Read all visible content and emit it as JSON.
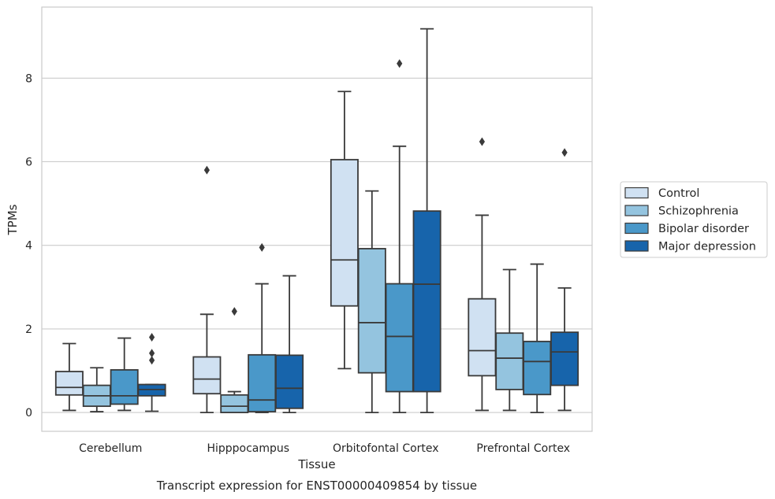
{
  "chart_data": {
    "type": "box",
    "xlabel": "Tissue",
    "ylabel": "TPMs",
    "caption": "Transcript expression for ENST00000409854 by tissue",
    "ylim": [
      -0.45,
      9.7
    ],
    "yticks": [
      0,
      2,
      4,
      6,
      8
    ],
    "grid": "horizontal",
    "legend_position": "right",
    "categories": [
      "Cerebellum",
      "Hipppocampus",
      "Orbitofontal Cortex",
      "Prefrontal Cortex"
    ],
    "series": [
      {
        "name": "Control",
        "color": "#d0e1f2",
        "boxes": [
          {
            "whislo": 0.05,
            "q1": 0.42,
            "med": 0.6,
            "q3": 0.98,
            "whishi": 1.65,
            "fliers": []
          },
          {
            "whislo": 0.0,
            "q1": 0.45,
            "med": 0.8,
            "q3": 1.33,
            "whishi": 2.35,
            "fliers": [
              5.8
            ]
          },
          {
            "whislo": 1.05,
            "q1": 2.55,
            "med": 3.65,
            "q3": 6.05,
            "whishi": 7.68,
            "fliers": []
          },
          {
            "whislo": 0.05,
            "q1": 0.88,
            "med": 1.48,
            "q3": 2.72,
            "whishi": 4.72,
            "fliers": [
              6.48
            ]
          }
        ]
      },
      {
        "name": "Schizophrenia",
        "color": "#94c4df",
        "boxes": [
          {
            "whislo": 0.02,
            "q1": 0.15,
            "med": 0.4,
            "q3": 0.65,
            "whishi": 1.07,
            "fliers": []
          },
          {
            "whislo": 0.0,
            "q1": 0.0,
            "med": 0.15,
            "q3": 0.42,
            "whishi": 0.5,
            "fliers": [
              2.42
            ]
          },
          {
            "whislo": 0.0,
            "q1": 0.95,
            "med": 2.15,
            "q3": 3.92,
            "whishi": 5.3,
            "fliers": []
          },
          {
            "whislo": 0.05,
            "q1": 0.55,
            "med": 1.3,
            "q3": 1.9,
            "whishi": 3.42,
            "fliers": []
          }
        ]
      },
      {
        "name": "Bipolar disorder",
        "color": "#4a98c9",
        "boxes": [
          {
            "whislo": 0.05,
            "q1": 0.2,
            "med": 0.4,
            "q3": 1.02,
            "whishi": 1.78,
            "fliers": []
          },
          {
            "whislo": 0.0,
            "q1": 0.02,
            "med": 0.3,
            "q3": 1.38,
            "whishi": 3.08,
            "fliers": [
              3.95
            ]
          },
          {
            "whislo": 0.0,
            "q1": 0.5,
            "med": 1.82,
            "q3": 3.08,
            "whishi": 6.37,
            "fliers": [
              8.35
            ]
          },
          {
            "whislo": 0.0,
            "q1": 0.43,
            "med": 1.22,
            "q3": 1.7,
            "whishi": 3.55,
            "fliers": []
          }
        ]
      },
      {
        "name": "Major depression",
        "color": "#1764ab",
        "boxes": [
          {
            "whislo": 0.03,
            "q1": 0.4,
            "med": 0.55,
            "q3": 0.67,
            "whishi": 0.67,
            "fliers": [
              1.25,
              1.42,
              1.8
            ]
          },
          {
            "whislo": 0.0,
            "q1": 0.1,
            "med": 0.58,
            "q3": 1.37,
            "whishi": 3.27,
            "fliers": []
          },
          {
            "whislo": 0.0,
            "q1": 0.5,
            "med": 3.07,
            "q3": 4.82,
            "whishi": 9.18,
            "fliers": []
          },
          {
            "whislo": 0.05,
            "q1": 0.65,
            "med": 1.45,
            "q3": 1.92,
            "whishi": 2.98,
            "fliers": [
              6.22
            ]
          }
        ]
      }
    ]
  }
}
